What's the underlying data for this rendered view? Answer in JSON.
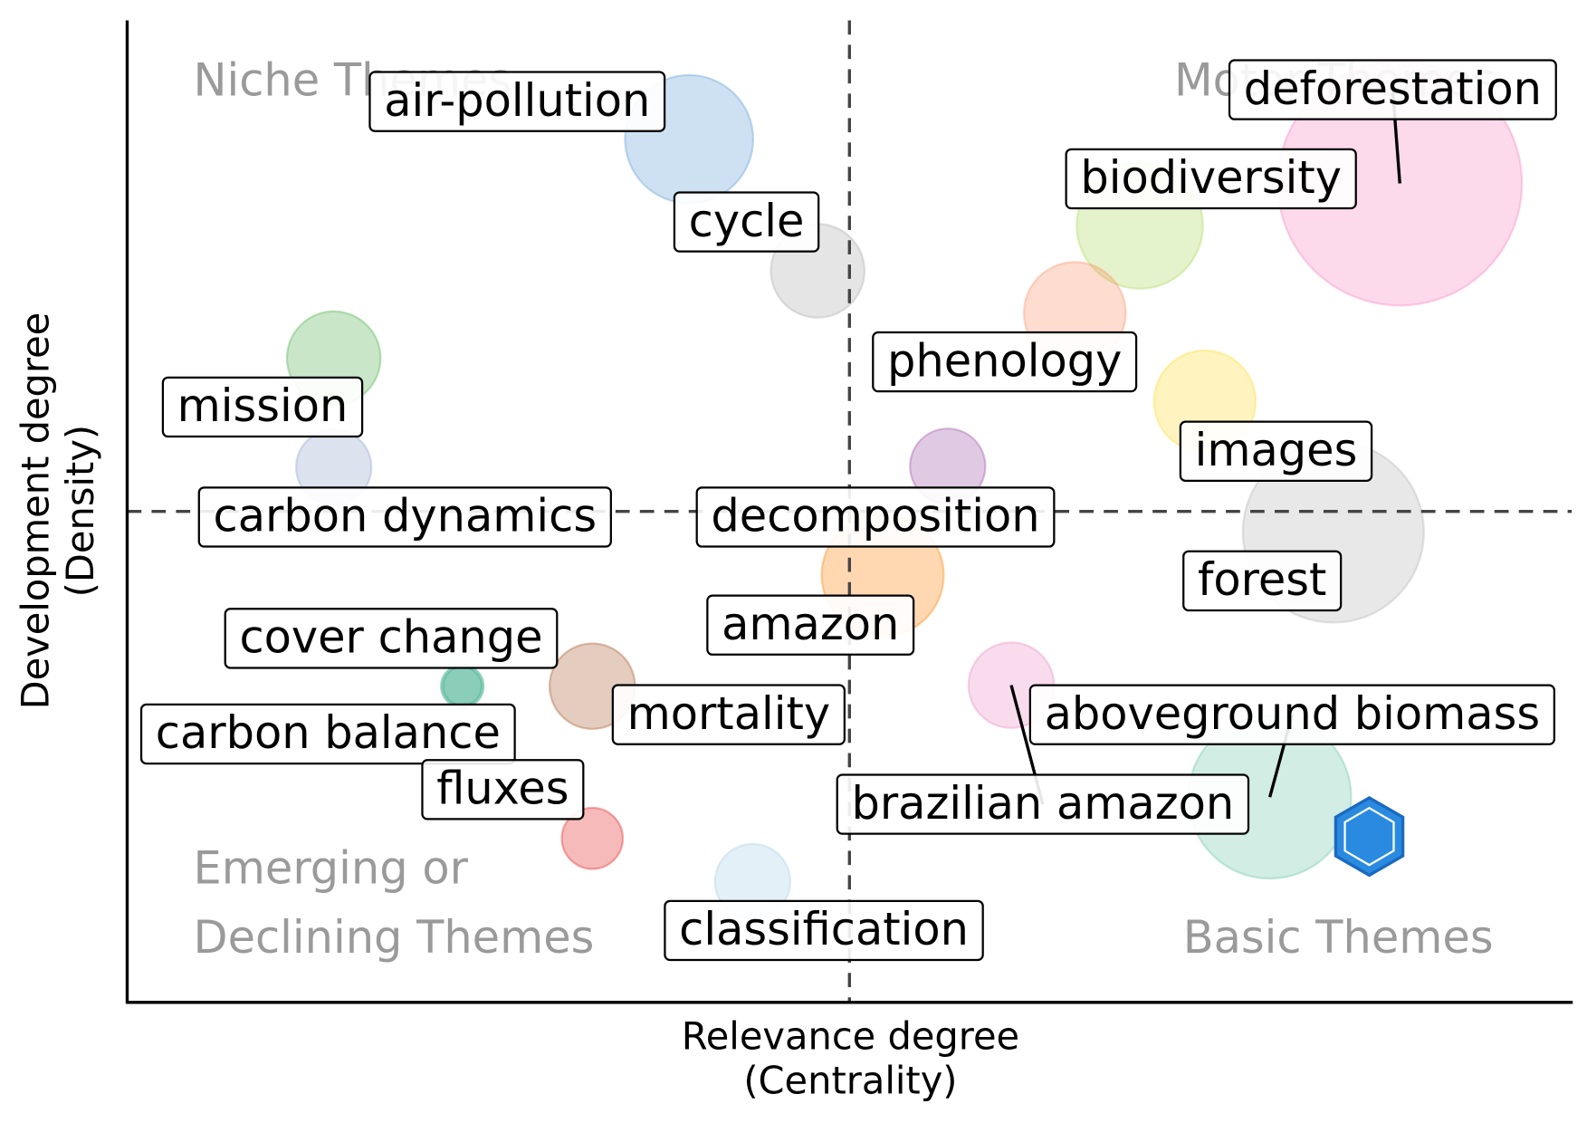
{
  "chart_data": {
    "type": "bubble",
    "xlabel": [
      "Relevance degree",
      "(Centrality)"
    ],
    "ylabel": [
      "Development degree",
      "(Density)"
    ],
    "xlim": [
      0,
      100
    ],
    "ylim": [
      0,
      100
    ],
    "xline": 50,
    "yline": 50,
    "quadrant_labels": {
      "top_left": [
        "Niche Themes"
      ],
      "top_right": [
        "Motor Themes"
      ],
      "bottom_left": [
        "Emerging or",
        "Declining Themes"
      ],
      "bottom_right": [
        "Basic Themes"
      ]
    },
    "labels": [
      "air-pollution",
      "cycle",
      "deforestation",
      "biodiversity",
      "phenology",
      "images",
      "decomposition",
      "forest",
      "amazon",
      "aboveground biomass",
      "brazilian amazon",
      "mission",
      "carbon dynamics",
      "cover change",
      "carbon balance",
      "mortality",
      "fluxes",
      "classification"
    ],
    "x": [
      38.9,
      47.8,
      88.1,
      70.1,
      65.6,
      74.6,
      56.8,
      83.5,
      52.3,
      79.1,
      61.2,
      14.3,
      14.3,
      23.2,
      23.2,
      32.2,
      32.2,
      43.3
    ],
    "y": [
      87.9,
      74.5,
      83.4,
      79.1,
      70.2,
      61.2,
      54.6,
      47.9,
      43.5,
      20.9,
      32.3,
      65.6,
      54.5,
      32.2,
      32.2,
      32.2,
      16.7,
      12.3
    ],
    "sizes": [
      63,
      46,
      120,
      62,
      50,
      50,
      37,
      89,
      60,
      80,
      42,
      46,
      37,
      21,
      19,
      42,
      30,
      37
    ],
    "colors": [
      "#5b9bd5",
      "#aaaaaa",
      "#f781bf",
      "#a6d854",
      "#fc8d62",
      "#ffd92f",
      "#984ea3",
      "#b3b3b3",
      "#ff7f00",
      "#66c2a5",
      "#e78ac3",
      "#4daf4a",
      "#8da0cb",
      "#1b9e77",
      "#1b9e77",
      "#a65628",
      "#e41a1c",
      "#a6cee3"
    ]
  }
}
